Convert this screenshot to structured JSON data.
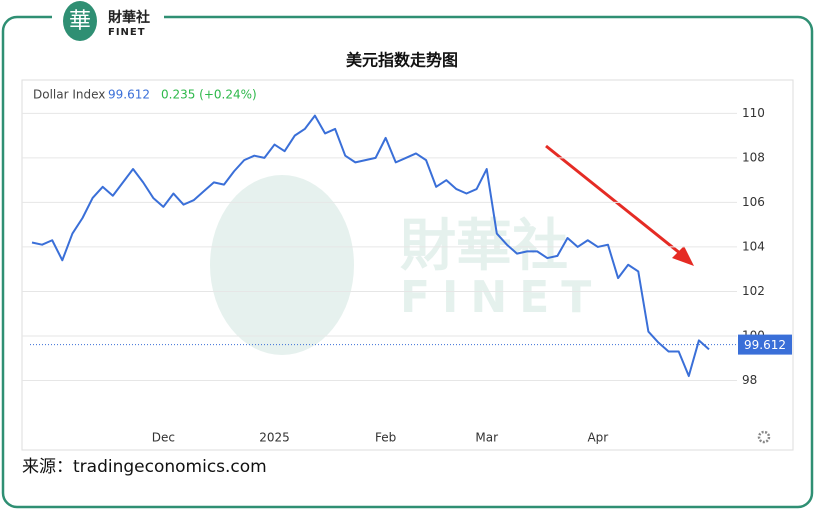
{
  "logo": {
    "name": "財華社",
    "latin": "FINET"
  },
  "source": "来源：tradingeconomics.com",
  "chart_data": {
    "type": "line",
    "title": "美元指数走势图",
    "series_label": "Dollar Index",
    "last_value": 99.612,
    "change_label": "0.235 (+0.24%)",
    "categories": [
      null,
      null,
      null,
      null,
      null,
      null,
      null,
      null,
      null,
      null,
      null,
      null,
      null,
      "Dec",
      null,
      null,
      null,
      null,
      null,
      null,
      null,
      null,
      null,
      null,
      "2025",
      null,
      null,
      null,
      null,
      null,
      null,
      null,
      null,
      null,
      null,
      "Feb",
      null,
      null,
      null,
      null,
      null,
      null,
      null,
      null,
      null,
      "Mar",
      null,
      null,
      null,
      null,
      null,
      null,
      null,
      null,
      null,
      null,
      "Apr",
      null,
      null,
      null,
      null,
      null,
      null,
      null,
      null,
      null,
      null,
      null
    ],
    "series": [
      {
        "name": "Dollar Index",
        "color": "#3a6fd8",
        "values": [
          104.2,
          104.1,
          104.3,
          103.4,
          104.6,
          105.3,
          106.2,
          106.7,
          106.3,
          106.9,
          107.5,
          106.9,
          106.2,
          105.8,
          106.4,
          105.9,
          106.1,
          106.5,
          106.9,
          106.8,
          107.4,
          107.9,
          108.1,
          108.0,
          108.6,
          108.3,
          109.0,
          109.3,
          109.9,
          109.1,
          109.3,
          108.1,
          107.8,
          107.9,
          108.0,
          108.9,
          107.8,
          108.0,
          108.2,
          107.9,
          106.7,
          107.0,
          106.6,
          106.4,
          106.6,
          107.5,
          104.6,
          104.1,
          103.7,
          103.8,
          103.8,
          103.5,
          103.6,
          104.4,
          104.0,
          104.3,
          104.0,
          104.1,
          102.6,
          103.2,
          102.9,
          100.2,
          99.7,
          99.3,
          99.3,
          98.2,
          99.8,
          99.4
        ]
      }
    ],
    "ylim": [
      96,
      111.5
    ],
    "yticks": [
      98,
      100,
      102,
      104,
      106,
      108,
      110
    ],
    "grid": true
  }
}
